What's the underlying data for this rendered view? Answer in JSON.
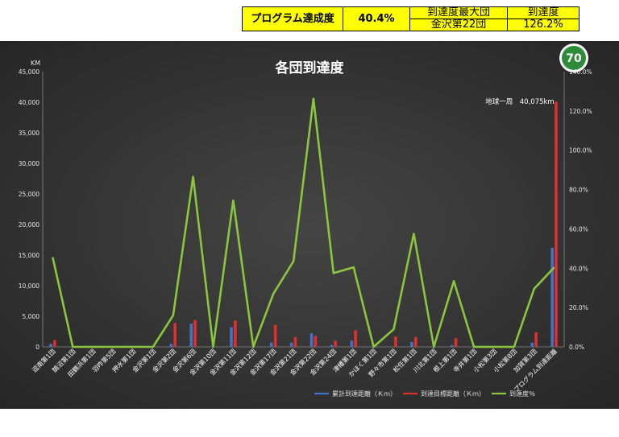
{
  "summary": {
    "label": "プログラム達成度",
    "rate": "40.4%",
    "max_header": "到達度最大団",
    "max_value": "金沢第22団",
    "reach_header": "到達度",
    "reach_value": "126.2%"
  },
  "badge": {
    "text": "70"
  },
  "chart_data": {
    "type": "bar",
    "title": "各団到達度",
    "left_unit": "KM",
    "annotation": "地球一周　40,075km",
    "categories": [
      "逗南第1団",
      "鵠沼第1団",
      "田鶴浜第1団",
      "羽咋第5団",
      "押水第1団",
      "金沢第1団",
      "金沢第2団",
      "金沢第6団",
      "金沢第10団",
      "金沢第11団",
      "金沢第12団",
      "金沢第17団",
      "金沢第21団",
      "金沢第22団",
      "金沢第24団",
      "津幡第1団",
      "かほく第1団",
      "野々市第1団",
      "松任第1団",
      "川北第1団",
      "根上第1団",
      "寺井第1団",
      "小松第3団",
      "小松第8団",
      "加賀第3団",
      "プログラム到達距離"
    ],
    "series": [
      {
        "name": "累計到達距離（Ｋｍ）",
        "color": "#4472c4",
        "axis": "left",
        "values": [
          500,
          0,
          0,
          0,
          0,
          0,
          500,
          3800,
          0,
          3200,
          0,
          700,
          700,
          2200,
          300,
          1000,
          0,
          0,
          800,
          0,
          300,
          0,
          0,
          0,
          700,
          16200
        ]
      },
      {
        "name": "到達目標距離（Ｋｍ）",
        "color": "#e0302d",
        "axis": "left",
        "values": [
          1100,
          0,
          0,
          0,
          0,
          0,
          3900,
          4400,
          0,
          4300,
          0,
          3600,
          1600,
          1800,
          1000,
          2700,
          0,
          1700,
          1600,
          0,
          1400,
          0,
          0,
          0,
          2400,
          40075
        ]
      },
      {
        "name": "到達度％",
        "color": "#8cc63f",
        "axis": "right",
        "values": [
          45.5,
          0,
          0,
          0,
          0,
          0,
          16,
          86.5,
          0,
          74.5,
          0,
          27,
          43.5,
          126.2,
          37.5,
          40.5,
          0,
          9,
          57.5,
          0,
          33.5,
          0,
          0,
          0,
          29.5,
          40.4
        ]
      }
    ],
    "left_axis": {
      "min": 0,
      "max": 45000,
      "step": 5000,
      "ticks": [
        "0",
        "5,000",
        "10,000",
        "15,000",
        "20,000",
        "25,000",
        "30,000",
        "35,000",
        "40,000",
        "45,000"
      ]
    },
    "right_axis": {
      "min": 0,
      "max": 140,
      "step": 20,
      "ticks": [
        "0.0%",
        "20.0%",
        "40.0%",
        "60.0%",
        "80.0%",
        "100.0%",
        "120.0%",
        "140.0%"
      ]
    },
    "legend_position": "bottom",
    "grid": false
  }
}
